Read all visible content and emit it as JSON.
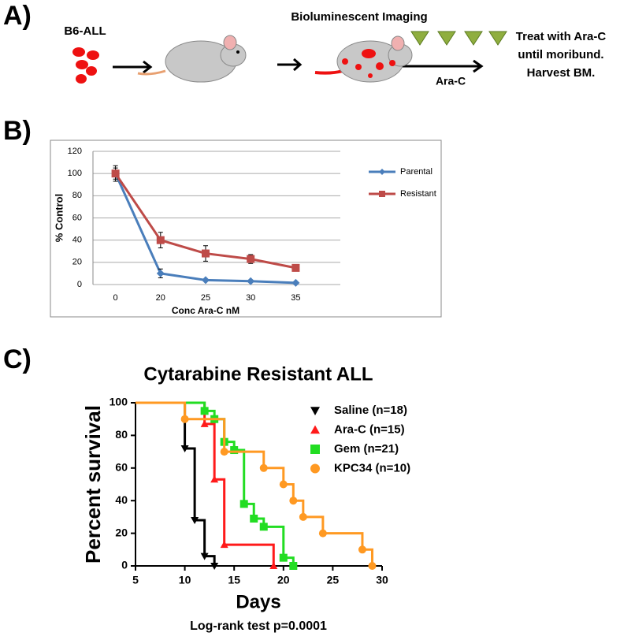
{
  "panel_a": {
    "label": "A)",
    "source": "B6-ALL",
    "imaging": "Bioluminescent Imaging",
    "drug": "Ara-C",
    "outcome": [
      "Treat with Ara-C",
      "until moribund.",
      "Harvest BM."
    ]
  },
  "chart_data": [
    {
      "type": "line",
      "label": "B)",
      "y_label": "% Control",
      "x_label": "Conc Ara-C nM",
      "categories": [
        "0",
        "20",
        "25",
        "30",
        "35"
      ],
      "series": [
        {
          "name": "Parental",
          "color": "#4a7ebb",
          "marker": "diamond",
          "values": [
            100,
            10,
            4,
            3,
            1.5
          ],
          "errors": [
            7,
            4,
            1,
            1,
            1
          ]
        },
        {
          "name": "Resistant",
          "color": "#be4b48",
          "marker": "square",
          "values": [
            100,
            40,
            28,
            23,
            15
          ],
          "errors": [
            5,
            7,
            7,
            4,
            1
          ]
        }
      ],
      "ylim": [
        0,
        120
      ],
      "yticks": [
        0,
        20,
        40,
        60,
        80,
        100,
        120
      ],
      "grid": true,
      "legend": "right"
    },
    {
      "type": "step",
      "label": "C)",
      "title": "Cytarabine Resistant ALL",
      "y_label": "Percent survival",
      "x_label": "Days",
      "note": "Log-rank test p=0.0001",
      "series": [
        {
          "name": "Saline (n=18)",
          "color": "#000000",
          "marker": "triangle-down",
          "x": [
            5,
            10,
            11,
            12,
            13
          ],
          "values": [
            100,
            72,
            28,
            6,
            0
          ]
        },
        {
          "name": "Ara-C (n=15)",
          "color": "#ff1a1a",
          "marker": "triangle-up",
          "x": [
            5,
            12,
            13,
            14,
            19
          ],
          "values": [
            100,
            87,
            53,
            13,
            0
          ]
        },
        {
          "name": "Gem (n=21)",
          "color": "#22dd22",
          "marker": "square",
          "x": [
            5,
            12,
            13,
            14,
            15,
            16,
            17,
            18,
            20,
            21
          ],
          "values": [
            100,
            95,
            90,
            76,
            71,
            38,
            29,
            24,
            5,
            0
          ]
        },
        {
          "name": "KPC34 (n=10)",
          "color": "#ff9922",
          "marker": "circle",
          "x": [
            5,
            10,
            14,
            18,
            20,
            21,
            22,
            24,
            28,
            29
          ],
          "values": [
            100,
            90,
            70,
            60,
            50,
            40,
            30,
            20,
            10,
            0
          ]
        }
      ],
      "xlim": [
        5,
        30
      ],
      "xticks": [
        5,
        10,
        15,
        20,
        25,
        30
      ],
      "ylim": [
        0,
        100
      ],
      "yticks": [
        0,
        20,
        40,
        60,
        80,
        100
      ],
      "legend": "right"
    }
  ]
}
